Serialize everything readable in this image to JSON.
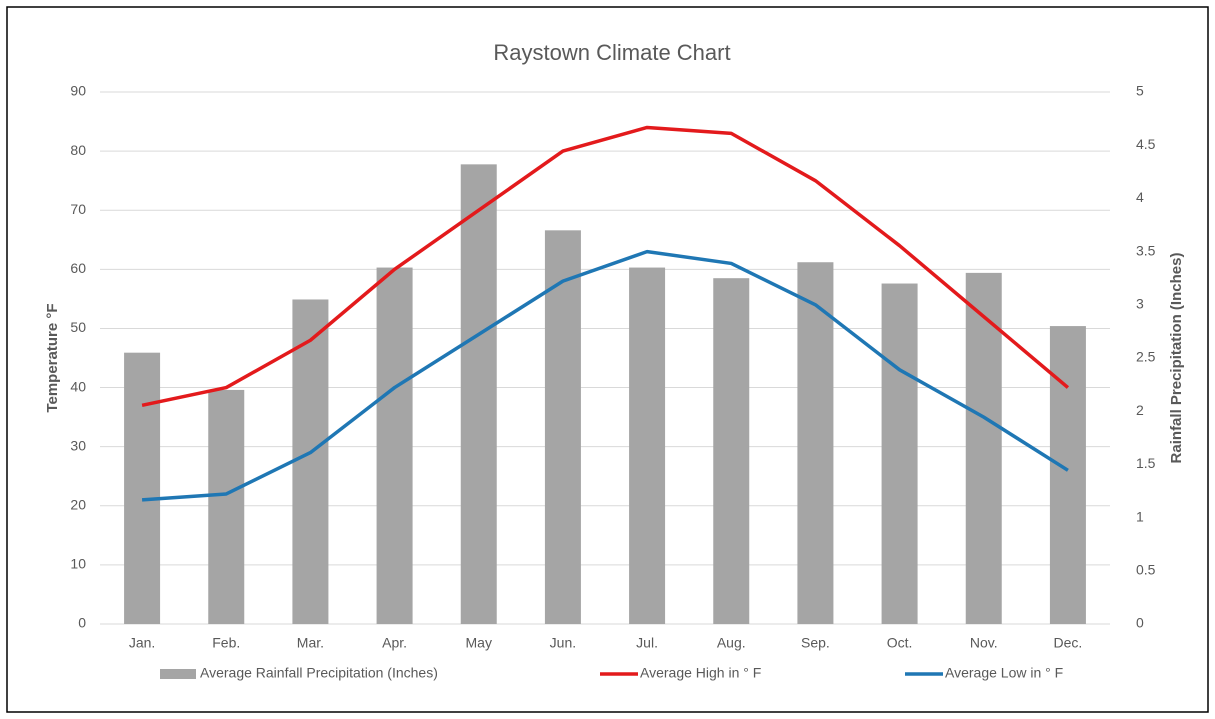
{
  "chart_data": {
    "type": "bar",
    "title": "Raystown Climate Chart",
    "ylabel": "Temperature °F",
    "y2label": "Rainfall Precipitation (Inches)",
    "categories": [
      "Jan.",
      "Feb.",
      "Mar.",
      "Apr.",
      "May",
      "Jun.",
      "Jul.",
      "Aug.",
      "Sep.",
      "Oct.",
      "Nov.",
      "Dec."
    ],
    "series": [
      {
        "name": "Average Rainfall Precipitation (Inches)",
        "type": "bar",
        "axis": "y2",
        "color": "#a5a5a5",
        "values": [
          2.55,
          2.2,
          3.05,
          3.35,
          4.32,
          3.7,
          3.35,
          3.25,
          3.4,
          3.2,
          3.3,
          2.8
        ]
      },
      {
        "name": "Average High in ° F",
        "type": "line",
        "color": "#e31a1c",
        "values": [
          37,
          40,
          48,
          60,
          70,
          80,
          84,
          83,
          75,
          64,
          52,
          40
        ]
      },
      {
        "name": "Average Low in ° F",
        "type": "line",
        "color": "#1f77b4",
        "values": [
          21,
          22,
          29,
          40,
          49,
          58,
          63,
          61,
          54,
          43,
          35,
          26
        ]
      }
    ],
    "ylim": [
      0,
      90
    ],
    "yticks": [
      0,
      10,
      20,
      30,
      40,
      50,
      60,
      70,
      80,
      90
    ],
    "y2lim": [
      0,
      5
    ],
    "y2ticks": [
      0,
      0.5,
      1,
      1.5,
      2,
      2.5,
      3,
      3.5,
      4,
      4.5,
      5
    ],
    "grid": true,
    "legend": "bottom"
  }
}
